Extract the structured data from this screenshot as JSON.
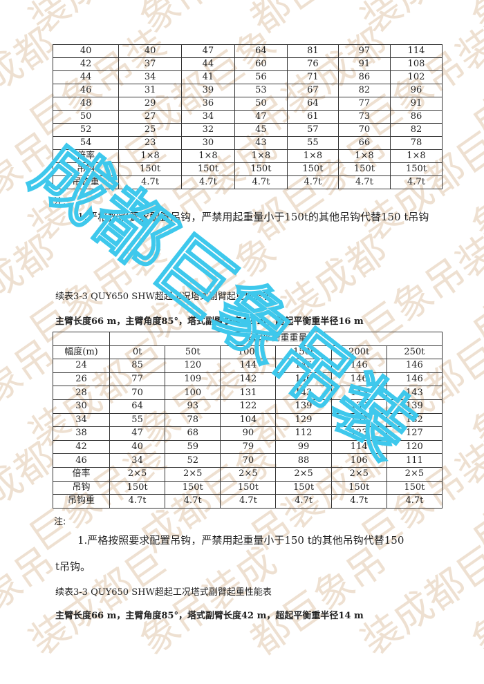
{
  "table1": {
    "rows": [
      [
        "40",
        "40",
        "47",
        "64",
        "81",
        "97",
        "114"
      ],
      [
        "42",
        "37",
        "44",
        "60",
        "76",
        "91",
        "108"
      ],
      [
        "44",
        "34",
        "41",
        "56",
        "71",
        "86",
        "102"
      ],
      [
        "46",
        "31",
        "39",
        "53",
        "67",
        "82",
        "96"
      ],
      [
        "48",
        "29",
        "36",
        "50",
        "64",
        "77",
        "91"
      ],
      [
        "50",
        "27",
        "34",
        "47",
        "61",
        "73",
        "86"
      ],
      [
        "52",
        "25",
        "32",
        "45",
        "57",
        "70",
        "82"
      ],
      [
        "54",
        "23",
        "30",
        "43",
        "55",
        "66",
        "78"
      ],
      [
        "倍率",
        "1×8",
        "1×8",
        "1×8",
        "1×8",
        "1×8",
        "1×8"
      ],
      [
        "吊钩",
        "150t",
        "150t",
        "150t",
        "150t",
        "150t",
        "150t"
      ],
      [
        "吊钩重",
        "4.7t",
        "4.7t",
        "4.7t",
        "4.7t",
        "4.7t",
        "4.7t"
      ]
    ]
  },
  "note1": {
    "label": "注:",
    "text": "1.严格按照要求配置吊钩，严禁用起重量小于150t的其他吊钩代替150 t吊钩"
  },
  "section2": {
    "caption": "续表3-3 QUY650 SHW超起工况塔式副臂起重性能表",
    "subtitle": "主臂长度66 m，主臂角度85°，塔式副臂长度42 m，超起平衡重半径16 m"
  },
  "table2": {
    "group_header": "超起平衡重重量",
    "headers": [
      "幅度(m)",
      "0t",
      "50t",
      "100t",
      "150t",
      "200t",
      "250t"
    ],
    "rows": [
      [
        "24",
        "85",
        "120",
        "144",
        "146",
        "146",
        "146"
      ],
      [
        "26",
        "77",
        "109",
        "142",
        "146",
        "146",
        "146"
      ],
      [
        "28",
        "70",
        "100",
        "131",
        "143",
        "143",
        "143"
      ],
      [
        "30",
        "64",
        "93",
        "122",
        "139",
        "139",
        "139"
      ],
      [
        "34",
        "55",
        "78",
        "104",
        "129",
        "132",
        "132"
      ],
      [
        "38",
        "47",
        "68",
        "90",
        "112",
        "123",
        "127"
      ],
      [
        "42",
        "40",
        "59",
        "79",
        "99",
        "114",
        "120"
      ],
      [
        "46",
        "34",
        "52",
        "70",
        "88",
        "106",
        "111"
      ],
      [
        "倍率",
        "2×5",
        "2×5",
        "2×5",
        "2×5",
        "2×5",
        "2×5"
      ],
      [
        "吊钩",
        "150t",
        "150t",
        "150t",
        "150t",
        "150t",
        "150t"
      ],
      [
        "吊钩重",
        "4.7t",
        "4.7t",
        "4.7t",
        "4.7t",
        "4.7t",
        "4.7t"
      ]
    ]
  },
  "note2": {
    "label": "注:",
    "line1": "1.严格按照要求配置吊钩，严禁用起重量小于150 t的其他吊钩代替150",
    "line2": "t吊钩。"
  },
  "section3": {
    "caption": "续表3-3 QUY650 SHW超起工况塔式副臂起重性能表",
    "subtitle": "主臂长度66 m，主臂角度85°，塔式副臂长度42 m，超起平衡重半径14 m"
  },
  "watermark": {
    "text": "成都巨象吊装",
    "color_tan": "#e6d6c4",
    "color_cyan": "#3ec8ec"
  }
}
